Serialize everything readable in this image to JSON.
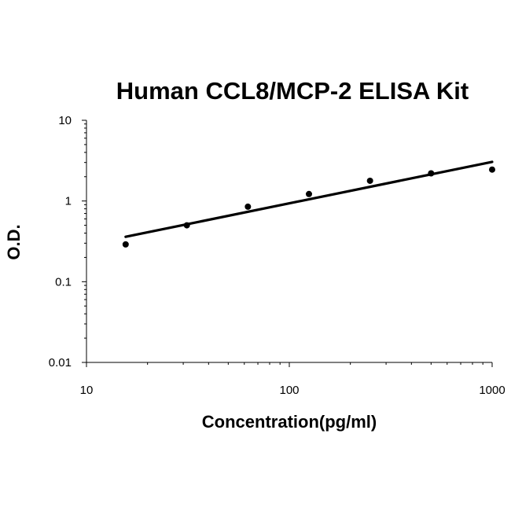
{
  "chart_data": {
    "type": "scatter",
    "title": "Human CCL8/MCP-2 ELISA Kit",
    "xlabel": "Concentration(pg/ml)",
    "ylabel": "O.D.",
    "xscale": "log",
    "yscale": "log",
    "xlim": [
      10,
      1000
    ],
    "ylim": [
      0.01,
      10
    ],
    "xticks": [
      "10",
      "100",
      "1000"
    ],
    "yticks": [
      "10",
      "1",
      "0.1",
      "0.01"
    ],
    "grid": false,
    "legend": "none",
    "series": [
      {
        "type": "scatter",
        "x": [
          15.6,
          31.25,
          62.5,
          125,
          250,
          500,
          1000
        ],
        "y": [
          0.29,
          0.5,
          0.85,
          1.22,
          1.78,
          2.2,
          2.45
        ]
      },
      {
        "type": "line",
        "x": [
          15.6,
          1000
        ],
        "y": [
          0.36,
          3.05
        ]
      }
    ]
  }
}
